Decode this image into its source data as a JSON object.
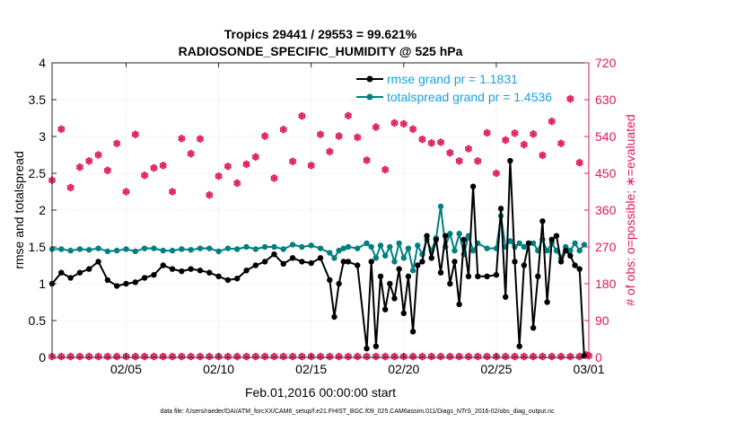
{
  "chart_data": {
    "type": "line",
    "title": "Tropics 29441 / 29553 = 99.621%",
    "subtitle": "RADIOSONDE_SPECIFIC_HUMIDITY @ 525 hPa",
    "xlabel": "Feb.01,2016 00:00:00 start",
    "ylabel_left": "rmse and totalspread",
    "ylabel_right": "# of obs: o=possible; ∗=evaluated",
    "footer": "data file: /Users/raeder/DAI/ATM_forcXX/CAM6_setup/f.e21.FHIST_BGC.f09_025.CAM6assim.011/Diags_NTrS_2016-02/obs_diag_output.nc",
    "xlim": [
      1,
      30
    ],
    "ylim_left": [
      0,
      4
    ],
    "ylim_right": [
      0,
      720
    ],
    "x_ticks": [
      5,
      10,
      15,
      20,
      25,
      30
    ],
    "x_tick_labels": [
      "02/05",
      "02/10",
      "02/15",
      "02/20",
      "02/25",
      "03/01"
    ],
    "y_ticks_left": [
      "0",
      "0.5",
      "1",
      "1.5",
      "2",
      "2.5",
      "3",
      "3.5",
      "4"
    ],
    "y_ticks_right": [
      "0",
      "90",
      "180",
      "270",
      "360",
      "450",
      "540",
      "630",
      "720"
    ],
    "legend_position": "top-right",
    "series": [
      {
        "name": "rmse",
        "legend": "rmse grand pr = 1.1831",
        "color": "#000000",
        "axis": "left",
        "x": [
          1,
          1.5,
          2,
          2.5,
          3,
          3.5,
          4,
          4.5,
          5,
          5.5,
          6,
          6.5,
          7,
          7.5,
          8,
          8.5,
          9,
          9.5,
          10,
          10.5,
          11,
          11.5,
          12,
          12.5,
          13,
          13.5,
          14,
          14.5,
          15,
          15.5,
          16,
          16.25,
          16.5,
          16.75,
          17,
          17.5,
          18,
          18.25,
          18.5,
          18.75,
          19,
          19.25,
          19.5,
          19.75,
          20,
          20.25,
          20.5,
          20.75,
          21,
          21.25,
          21.5,
          21.75,
          22,
          22.25,
          22.5,
          22.75,
          23,
          23.25,
          23.5,
          23.75,
          24,
          24.5,
          25,
          25.25,
          25.5,
          25.75,
          26,
          26.25,
          26.5,
          26.75,
          27,
          27.25,
          27.5,
          27.75,
          28,
          28.25,
          28.5,
          28.75,
          29,
          29.25,
          29.5,
          29.75
        ],
        "values": [
          1.0,
          1.15,
          1.08,
          1.15,
          1.2,
          1.3,
          1.05,
          0.97,
          1.0,
          1.02,
          1.08,
          1.12,
          1.25,
          1.2,
          1.17,
          1.2,
          1.18,
          1.15,
          1.1,
          1.05,
          1.07,
          1.18,
          1.25,
          1.3,
          1.4,
          1.27,
          1.35,
          1.3,
          1.28,
          1.35,
          1.05,
          0.55,
          1.0,
          1.3,
          1.3,
          1.25,
          0.12,
          1.3,
          0.15,
          1.1,
          0.65,
          1.0,
          0.8,
          1.2,
          0.6,
          1.1,
          0.35,
          1.25,
          1.3,
          1.65,
          1.35,
          1.6,
          1.15,
          1.65,
          1.0,
          1.3,
          0.72,
          1.6,
          1.1,
          2.32,
          1.1,
          1.1,
          1.12,
          2.02,
          0.82,
          2.67,
          1.3,
          0.15,
          1.25,
          1.55,
          0.4,
          1.1,
          1.85,
          0.75,
          1.6,
          1.65,
          1.3,
          1.45,
          1.38,
          1.25,
          1.2,
          0.02
        ]
      },
      {
        "name": "totalspread",
        "legend": "totalspread grand pr = 1.4536",
        "color": "#008080",
        "axis": "left",
        "x": [
          1,
          1.5,
          2,
          2.5,
          3,
          3.5,
          4,
          4.5,
          5,
          5.5,
          6,
          6.5,
          7,
          7.5,
          8,
          8.5,
          9,
          9.5,
          10,
          10.5,
          11,
          11.5,
          12,
          12.5,
          13,
          13.5,
          14,
          14.5,
          15,
          15.5,
          16,
          16.25,
          16.5,
          16.75,
          17,
          17.5,
          18,
          18.25,
          18.5,
          18.75,
          19,
          19.25,
          19.5,
          19.75,
          20,
          20.25,
          20.5,
          20.75,
          21,
          21.25,
          21.5,
          21.75,
          22,
          22.25,
          22.5,
          22.75,
          23,
          23.25,
          23.5,
          23.75,
          24,
          24.5,
          25,
          25.25,
          25.5,
          25.75,
          26,
          26.25,
          26.5,
          26.75,
          27,
          27.25,
          27.5,
          27.75,
          28,
          28.25,
          28.5,
          28.75,
          29,
          29.25,
          29.5,
          29.75
        ],
        "values": [
          1.47,
          1.47,
          1.45,
          1.47,
          1.46,
          1.48,
          1.44,
          1.45,
          1.47,
          1.44,
          1.48,
          1.48,
          1.45,
          1.45,
          1.47,
          1.46,
          1.48,
          1.48,
          1.44,
          1.48,
          1.47,
          1.5,
          1.47,
          1.5,
          1.5,
          1.47,
          1.53,
          1.5,
          1.52,
          1.48,
          1.42,
          1.35,
          1.45,
          1.48,
          1.5,
          1.48,
          1.55,
          1.5,
          1.35,
          1.52,
          1.38,
          1.5,
          1.3,
          1.55,
          1.35,
          1.48,
          1.18,
          1.52,
          1.4,
          1.6,
          1.45,
          1.62,
          2.05,
          1.5,
          1.68,
          1.45,
          1.68,
          1.4,
          1.65,
          1.45,
          1.55,
          1.48,
          1.48,
          1.92,
          1.5,
          1.58,
          1.5,
          1.55,
          1.5,
          1.55,
          1.55,
          1.45,
          1.6,
          1.45,
          1.55,
          1.45,
          1.35,
          1.5,
          1.45,
          1.55,
          1.45,
          1.53
        ]
      },
      {
        "name": "obs possible",
        "color": "#e0185a",
        "axis": "right",
        "x": [
          1,
          1.5,
          2,
          2.5,
          3,
          3.5,
          4,
          4.5,
          5,
          5.5,
          6,
          6.5,
          7,
          7.5,
          8,
          8.5,
          9,
          9.5,
          10,
          10.5,
          11,
          11.5,
          12,
          12.5,
          13,
          13.5,
          14,
          14.5,
          15,
          15.5,
          16,
          16.5,
          17,
          17.5,
          18,
          18.5,
          19,
          19.5,
          20,
          20.5,
          21,
          21.5,
          22,
          22.5,
          23,
          23.5,
          24,
          24.5,
          25,
          25.5,
          26,
          26.5,
          27,
          27.5,
          28,
          28.5,
          29,
          29.5
        ],
        "values": [
          433,
          558,
          415,
          465,
          480,
          495,
          457,
          523,
          405,
          545,
          445,
          463,
          469,
          405,
          535,
          498,
          534,
          397,
          443,
          467,
          426,
          472,
          490,
          541,
          438,
          557,
          479,
          590,
          469,
          545,
          503,
          541,
          591,
          538,
          482,
          563,
          459,
          573,
          571,
          558,
          533,
          524,
          526,
          500,
          480,
          510,
          480,
          549,
          450,
          531,
          548,
          520,
          546,
          494,
          577,
          523,
          632,
          476
        ]
      },
      {
        "name": "obs evaluated",
        "color": "#e0185a",
        "axis": "right",
        "x": [
          1,
          1.5,
          2,
          2.5,
          3,
          3.5,
          4,
          4.5,
          5,
          5.5,
          6,
          6.5,
          7,
          7.5,
          8,
          8.5,
          9,
          9.5,
          10,
          10.5,
          11,
          11.5,
          12,
          12.5,
          13,
          13.5,
          14,
          14.5,
          15,
          15.5,
          16,
          16.5,
          17,
          17.5,
          18,
          18.5,
          19,
          19.5,
          20,
          20.5,
          21,
          21.5,
          22,
          22.5,
          23,
          23.5,
          24,
          24.5,
          25,
          25.5,
          26,
          26.5,
          27,
          27.5,
          28,
          28.5,
          29,
          29.5
        ],
        "values": [
          2,
          2,
          2,
          2,
          2,
          2,
          2,
          2,
          2,
          2,
          2,
          2,
          2,
          2,
          2,
          2,
          2,
          2,
          2,
          2,
          2,
          2,
          2,
          2,
          2,
          2,
          2,
          2,
          2,
          2,
          2,
          2,
          2,
          2,
          2,
          2,
          2,
          2,
          2,
          2,
          2,
          2,
          2,
          2,
          2,
          2,
          2,
          2,
          2,
          2,
          2,
          2,
          2,
          2,
          2,
          2,
          2,
          2
        ]
      }
    ]
  }
}
